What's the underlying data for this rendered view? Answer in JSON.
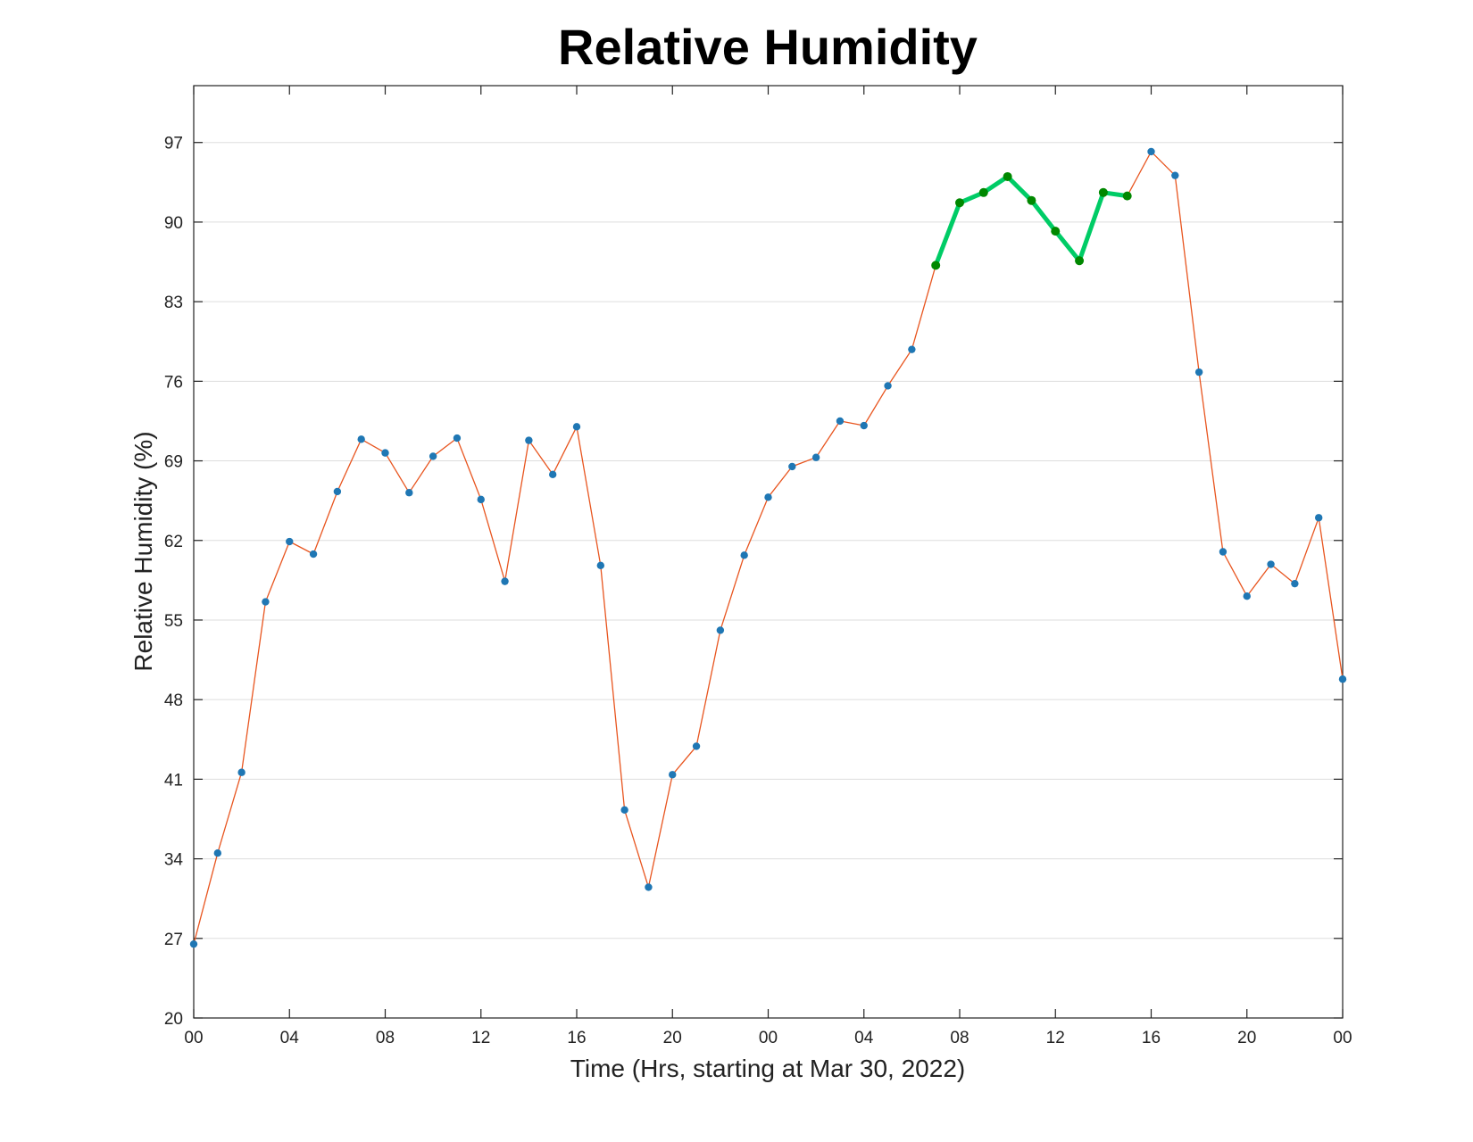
{
  "chart_data": {
    "type": "line",
    "title": "Relative Humidity",
    "xlabel": "Time (Hrs, starting at Mar 30, 2022)",
    "ylabel": "Relative Humidity (%)",
    "ylim": [
      20,
      102
    ],
    "xlim": [
      0,
      48
    ],
    "grid": "horizontal",
    "y_ticks": [
      20,
      27,
      34,
      41,
      48,
      55,
      62,
      69,
      76,
      83,
      90,
      97
    ],
    "x_ticks": [
      {
        "x": 0,
        "label": "00"
      },
      {
        "x": 4,
        "label": "04"
      },
      {
        "x": 8,
        "label": "08"
      },
      {
        "x": 12,
        "label": "12"
      },
      {
        "x": 16,
        "label": "16"
      },
      {
        "x": 20,
        "label": "20"
      },
      {
        "x": 24,
        "label": "00"
      },
      {
        "x": 28,
        "label": "04"
      },
      {
        "x": 32,
        "label": "08"
      },
      {
        "x": 36,
        "label": "12"
      },
      {
        "x": 40,
        "label": "16"
      },
      {
        "x": 44,
        "label": "20"
      },
      {
        "x": 48,
        "label": "00"
      }
    ],
    "series": [
      {
        "line_color": "#e8551f",
        "marker_color": "#1f77b4",
        "x": [
          0,
          1,
          2,
          3,
          4,
          5,
          6,
          7,
          8,
          9,
          10,
          11,
          12,
          13,
          14,
          15,
          16,
          17,
          18,
          19,
          20,
          21,
          22,
          23,
          24,
          25,
          26,
          27,
          28,
          29,
          30,
          31,
          32,
          33,
          34,
          35,
          36,
          37,
          38,
          39,
          40,
          41,
          42,
          43,
          44,
          45,
          46,
          47,
          48
        ],
        "values": [
          26.5,
          34.5,
          41.6,
          56.6,
          61.9,
          60.8,
          66.3,
          70.9,
          69.7,
          66.2,
          69.4,
          71.0,
          65.6,
          58.4,
          70.8,
          67.8,
          72.0,
          59.8,
          38.3,
          31.5,
          41.4,
          43.9,
          54.1,
          60.7,
          65.8,
          68.5,
          69.3,
          72.5,
          72.1,
          75.6,
          78.8,
          86.2,
          91.7,
          92.6,
          94.0,
          91.9,
          89.2,
          86.6,
          92.6,
          92.3,
          96.2,
          94.1,
          76.8,
          61.0,
          57.1,
          59.9,
          58.2,
          64.0,
          49.8
        ]
      },
      {
        "line_color": "#00cc66",
        "marker_color": "#008800",
        "x": [
          31,
          32,
          33,
          34,
          35,
          36,
          37,
          38,
          39
        ],
        "values": [
          86.2,
          91.7,
          92.6,
          94.0,
          91.9,
          89.2,
          86.6,
          92.6,
          92.3
        ]
      }
    ]
  }
}
